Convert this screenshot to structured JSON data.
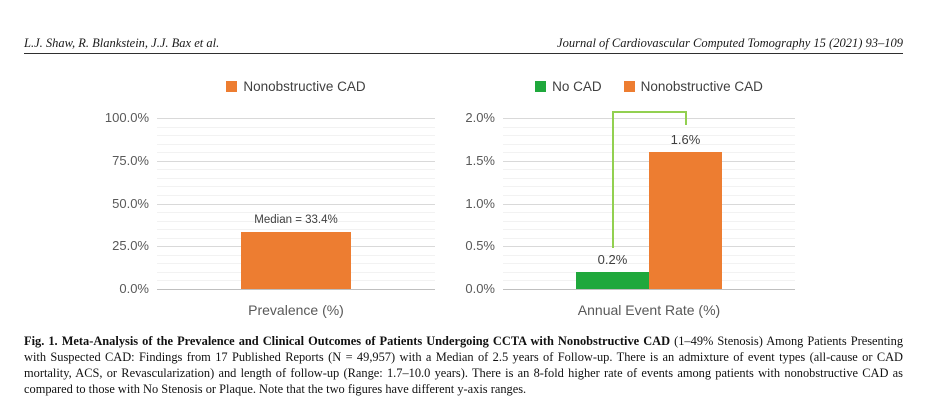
{
  "header": {
    "running_head_left": "L.J. Shaw, R. Blankstein, J.J. Bax et al.",
    "running_head_right": "Journal of Cardiovascular Computed Tomography 15 (2021) 93–109"
  },
  "colors": {
    "orange": "#ED7D31",
    "green": "#1FA83C",
    "bracket_green": "#92D050",
    "grid_major": "#D9D9D9",
    "grid_minor": "#F2F2F2",
    "axis_line": "#BFBFBF",
    "tick_text": "#595959",
    "axis_title_text": "#595959",
    "data_label_text": "#3F3F3F",
    "legend_text": "#404040"
  },
  "chart_data": [
    {
      "type": "bar",
      "title": "",
      "legend_position": "top",
      "categories": [
        "Prevalence (%)"
      ],
      "series": [
        {
          "name": "Nonobstructive CAD",
          "values": [
            33.4
          ],
          "color": "#ED7D31",
          "data_label": "Median = 33.4%"
        }
      ],
      "xlabel": "Prevalence (%)",
      "ylabel": "",
      "ylim": [
        0,
        100
      ],
      "y_major_unit": 25,
      "y_minor_unit": 5,
      "y_tick_labels": [
        "0.0%",
        "25.0%",
        "50.0%",
        "75.0%",
        "100.0%"
      ],
      "grid": true
    },
    {
      "type": "bar",
      "title": "",
      "legend_position": "top",
      "categories": [
        "Annual Event Rate (%)"
      ],
      "series": [
        {
          "name": "No CAD",
          "values": [
            0.2
          ],
          "color": "#1FA83C",
          "data_label": "0.2%"
        },
        {
          "name": "Nonobstructive CAD",
          "values": [
            1.6
          ],
          "color": "#ED7D31",
          "data_label": "1.6%"
        }
      ],
      "xlabel": "Annual Event Rate (%)",
      "ylabel": "",
      "ylim": [
        0,
        2
      ],
      "y_major_unit": 0.5,
      "y_minor_unit": 0.1,
      "y_tick_labels": [
        "0.0%",
        "0.5%",
        "1.0%",
        "1.5%",
        "2.0%"
      ],
      "grid": true,
      "annotation": {
        "type": "bracket",
        "color": "#92D050",
        "from_series": "No CAD",
        "to_series": "Nonobstructive CAD"
      }
    }
  ],
  "caption": {
    "bold": "Fig. 1. Meta-Analysis of the Prevalence and Clinical Outcomes of Patients Undergoing CCTA with Nonobstructive CAD",
    "regular": " (1–49% Stenosis) Among Patients Presenting with Suspected CAD: Findings from 17 Published Reports (N = 49,957) with a Median of 2.5 years of Follow-up. There is an admixture of event types (all-cause or CAD mortality, ACS, or Revascularization) and length of follow-up (Range: 1.7–10.0 years). There is an 8-fold higher rate of events among patients with nonobstructive CAD as compared to those with No Stenosis or Plaque. Note that the two figures have different y-axis ranges."
  }
}
